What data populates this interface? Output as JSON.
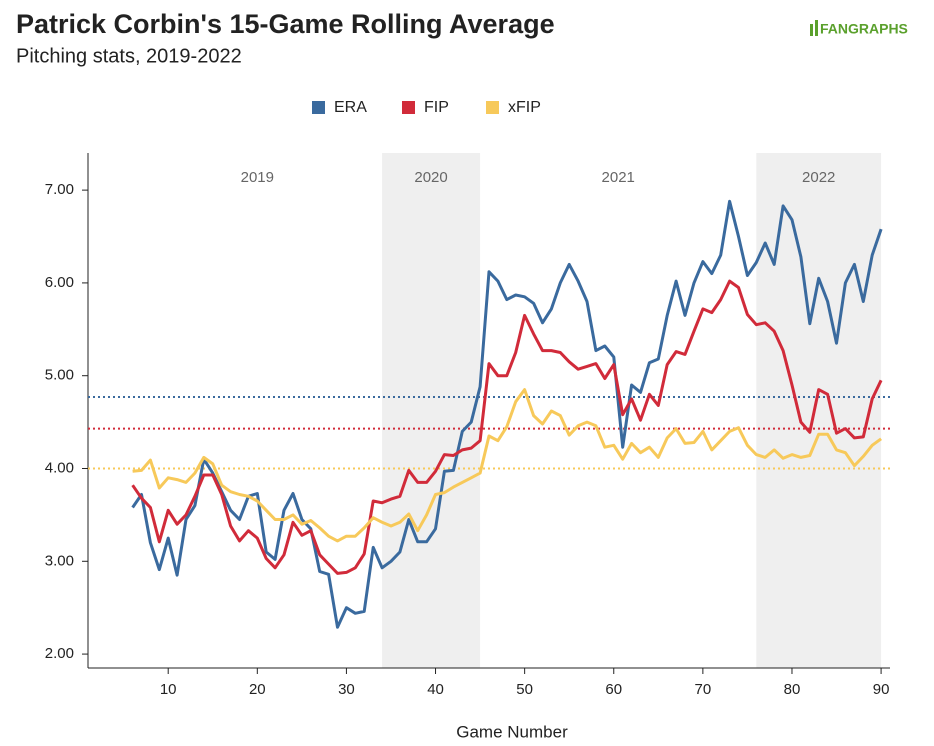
{
  "chart_data": {
    "type": "line",
    "title": "Patrick Corbin's 15-Game Rolling Average",
    "subtitle": "Pitching stats, 2019-2022",
    "brand": "FANGRAPHS",
    "x_label": "Game Number",
    "x": [
      6,
      7,
      8,
      9,
      10,
      11,
      12,
      13,
      14,
      15,
      16,
      17,
      18,
      19,
      20,
      21,
      22,
      23,
      24,
      25,
      26,
      27,
      28,
      29,
      30,
      31,
      32,
      33,
      34,
      35,
      36,
      37,
      38,
      39,
      40,
      41,
      42,
      43,
      44,
      45,
      46,
      47,
      48,
      49,
      50,
      51,
      52,
      53,
      54,
      55,
      56,
      57,
      58,
      59,
      60,
      61,
      62,
      63,
      64,
      65,
      66,
      67,
      68,
      69,
      70,
      71,
      72,
      73,
      74,
      75,
      76,
      77,
      78,
      79,
      80,
      81,
      82,
      83,
      84,
      85,
      86,
      87,
      88,
      89,
      90
    ],
    "series": [
      {
        "name": "ERA",
        "color": "#3a6a9e",
        "average": 4.77,
        "values": [
          3.58,
          3.72,
          3.2,
          2.91,
          3.25,
          2.85,
          3.45,
          3.6,
          4.1,
          3.95,
          3.75,
          3.55,
          3.45,
          3.7,
          3.73,
          3.1,
          3.02,
          3.55,
          3.73,
          3.45,
          3.35,
          2.89,
          2.86,
          2.29,
          2.5,
          2.44,
          2.46,
          3.15,
          2.93,
          3.0,
          3.1,
          3.45,
          3.21,
          3.21,
          3.35,
          3.97,
          3.98,
          4.4,
          4.5,
          4.88,
          6.12,
          6.02,
          5.82,
          5.87,
          5.85,
          5.78,
          5.57,
          5.72,
          6.0,
          6.2,
          6.02,
          5.8,
          5.27,
          5.32,
          5.2,
          4.23,
          4.9,
          4.82,
          5.14,
          5.18,
          5.65,
          6.02,
          5.65,
          6.0,
          6.23,
          6.1,
          6.3,
          6.88,
          6.5,
          6.08,
          6.22,
          6.43,
          6.2,
          6.83,
          6.68,
          6.28,
          5.56,
          6.05,
          5.8,
          5.35,
          6.0,
          6.2,
          5.8,
          6.3,
          6.58
        ]
      },
      {
        "name": "FIP",
        "color": "#d12b3a",
        "average": 4.43,
        "values": [
          3.82,
          3.68,
          3.58,
          3.21,
          3.55,
          3.4,
          3.5,
          3.7,
          3.93,
          3.93,
          3.72,
          3.38,
          3.22,
          3.33,
          3.25,
          3.03,
          2.93,
          3.07,
          3.42,
          3.28,
          3.33,
          3.07,
          2.97,
          2.87,
          2.88,
          2.93,
          3.08,
          3.65,
          3.63,
          3.67,
          3.7,
          3.98,
          3.85,
          3.85,
          3.97,
          4.15,
          4.14,
          4.2,
          4.22,
          4.3,
          5.13,
          5.0,
          5.0,
          5.25,
          5.65,
          5.45,
          5.27,
          5.27,
          5.25,
          5.15,
          5.07,
          5.1,
          5.13,
          4.97,
          5.12,
          4.58,
          4.75,
          4.52,
          4.8,
          4.68,
          5.12,
          5.26,
          5.23,
          5.48,
          5.72,
          5.68,
          5.82,
          6.02,
          5.95,
          5.66,
          5.55,
          5.57,
          5.48,
          5.27,
          4.9,
          4.5,
          4.39,
          4.85,
          4.8,
          4.38,
          4.43,
          4.33,
          4.34,
          4.75,
          4.95
        ]
      },
      {
        "name": "xFIP",
        "color": "#f7c95a",
        "average": 4.0,
        "values": [
          3.97,
          3.98,
          4.09,
          3.79,
          3.9,
          3.88,
          3.85,
          3.95,
          4.12,
          4.05,
          3.82,
          3.75,
          3.72,
          3.7,
          3.65,
          3.55,
          3.45,
          3.45,
          3.5,
          3.4,
          3.44,
          3.36,
          3.27,
          3.22,
          3.27,
          3.27,
          3.36,
          3.47,
          3.42,
          3.38,
          3.42,
          3.51,
          3.33,
          3.5,
          3.72,
          3.74,
          3.8,
          3.85,
          3.9,
          3.95,
          4.35,
          4.3,
          4.45,
          4.72,
          4.85,
          4.57,
          4.48,
          4.62,
          4.57,
          4.36,
          4.46,
          4.5,
          4.46,
          4.23,
          4.25,
          4.1,
          4.27,
          4.17,
          4.23,
          4.12,
          4.33,
          4.43,
          4.27,
          4.28,
          4.4,
          4.2,
          4.3,
          4.4,
          4.44,
          4.25,
          4.15,
          4.12,
          4.2,
          4.11,
          4.15,
          4.12,
          4.14,
          4.37,
          4.37,
          4.2,
          4.17,
          4.03,
          4.13,
          4.25,
          4.32
        ]
      }
    ],
    "seasons": [
      {
        "label": "2019",
        "start": 6,
        "end": 34,
        "shaded": false
      },
      {
        "label": "2020",
        "start": 34,
        "end": 45,
        "shaded": true
      },
      {
        "label": "2021",
        "start": 45,
        "end": 76,
        "shaded": false
      },
      {
        "label": "2022",
        "start": 76,
        "end": 90,
        "shaded": true
      }
    ],
    "xlim": [
      1,
      91
    ],
    "xticks": [
      10,
      20,
      30,
      40,
      50,
      60,
      70,
      80,
      90
    ],
    "ylim": [
      1.85,
      7.4
    ],
    "yticks": [
      {
        "value": 2,
        "label": "2.00"
      },
      {
        "value": 3,
        "label": "3.00"
      },
      {
        "value": 4,
        "label": "4.00"
      },
      {
        "value": 5,
        "label": "5.00"
      },
      {
        "value": 6,
        "label": "6.00"
      },
      {
        "value": 7,
        "label": "7.00"
      }
    ],
    "legend": "top"
  }
}
